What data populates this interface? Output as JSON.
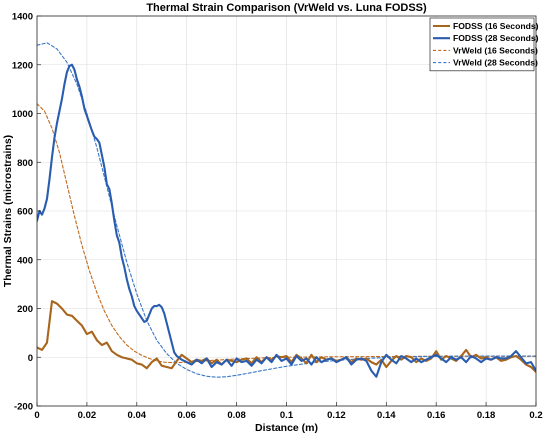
{
  "chart_data": {
    "type": "line",
    "title": "Thermal Strain Comparison (VrWeld vs. Luna FODSS)",
    "xlabel": "Distance (m)",
    "ylabel": "Thermal Strains (microstrains)",
    "xlim": [
      0,
      0.2
    ],
    "ylim": [
      -200,
      1400
    ],
    "xticks": [
      0,
      0.02,
      0.04,
      0.06,
      0.08,
      0.1,
      0.12,
      0.14,
      0.16,
      0.18,
      0.2
    ],
    "xtick_labels": [
      "0",
      "0.02",
      "0.04",
      "0.06",
      "0.08",
      "0.1",
      "0.12",
      "0.14",
      "0.16",
      "0.18",
      "0.2"
    ],
    "yticks": [
      -200,
      0,
      200,
      400,
      600,
      800,
      1000,
      1200,
      1400
    ],
    "ytick_labels": [
      "-200",
      "0",
      "200",
      "400",
      "600",
      "800",
      "1000",
      "1200",
      "1400"
    ],
    "grid": true,
    "legend_position": "top-right",
    "series": [
      {
        "name": "FODSS (16 Seconds)",
        "color": "#a8651c",
        "style": "solid",
        "points": [
          [
            0,
            40
          ],
          [
            0.002,
            30
          ],
          [
            0.004,
            60
          ],
          [
            0.006,
            230
          ],
          [
            0.008,
            220
          ],
          [
            0.01,
            200
          ],
          [
            0.012,
            175
          ],
          [
            0.014,
            170
          ],
          [
            0.016,
            150
          ],
          [
            0.018,
            130
          ],
          [
            0.02,
            95
          ],
          [
            0.022,
            105
          ],
          [
            0.024,
            70
          ],
          [
            0.026,
            50
          ],
          [
            0.028,
            60
          ],
          [
            0.03,
            25
          ],
          [
            0.032,
            10
          ],
          [
            0.034,
            0
          ],
          [
            0.036,
            -5
          ],
          [
            0.038,
            -10
          ],
          [
            0.04,
            -25
          ],
          [
            0.042,
            -30
          ],
          [
            0.044,
            -45
          ],
          [
            0.046,
            -20
          ],
          [
            0.048,
            -5
          ],
          [
            0.05,
            -35
          ],
          [
            0.052,
            -40
          ],
          [
            0.054,
            -45
          ],
          [
            0.056,
            -15
          ],
          [
            0.058,
            10
          ],
          [
            0.06,
            -5
          ],
          [
            0.062,
            -20
          ],
          [
            0.064,
            -10
          ],
          [
            0.066,
            -15
          ],
          [
            0.068,
            -5
          ],
          [
            0.07,
            -25
          ],
          [
            0.072,
            -10
          ],
          [
            0.074,
            -30
          ],
          [
            0.076,
            -10
          ],
          [
            0.078,
            -15
          ],
          [
            0.08,
            -20
          ],
          [
            0.082,
            -10
          ],
          [
            0.084,
            -5
          ],
          [
            0.086,
            -25
          ],
          [
            0.088,
            0
          ],
          [
            0.09,
            -20
          ],
          [
            0.092,
            0
          ],
          [
            0.094,
            -10
          ],
          [
            0.096,
            5
          ],
          [
            0.098,
            0
          ],
          [
            0.1,
            5
          ],
          [
            0.102,
            -20
          ],
          [
            0.104,
            10
          ],
          [
            0.106,
            -5
          ],
          [
            0.108,
            -25
          ],
          [
            0.11,
            10
          ],
          [
            0.112,
            -20
          ],
          [
            0.114,
            0
          ],
          [
            0.116,
            -10
          ],
          [
            0.118,
            -5
          ],
          [
            0.12,
            -15
          ],
          [
            0.122,
            -10
          ],
          [
            0.124,
            0
          ],
          [
            0.126,
            -20
          ],
          [
            0.128,
            -5
          ],
          [
            0.13,
            -10
          ],
          [
            0.132,
            -5
          ],
          [
            0.134,
            -20
          ],
          [
            0.136,
            -30
          ],
          [
            0.138,
            -10
          ],
          [
            0.14,
            -40
          ],
          [
            0.142,
            -15
          ],
          [
            0.144,
            5
          ],
          [
            0.146,
            -10
          ],
          [
            0.148,
            5
          ],
          [
            0.15,
            0
          ],
          [
            0.152,
            -20
          ],
          [
            0.154,
            -5
          ],
          [
            0.156,
            -15
          ],
          [
            0.158,
            -5
          ],
          [
            0.16,
            25
          ],
          [
            0.162,
            -10
          ],
          [
            0.164,
            5
          ],
          [
            0.166,
            -5
          ],
          [
            0.168,
            -15
          ],
          [
            0.17,
            5
          ],
          [
            0.172,
            30
          ],
          [
            0.174,
            0
          ],
          [
            0.176,
            10
          ],
          [
            0.178,
            -5
          ],
          [
            0.18,
            0
          ],
          [
            0.182,
            -10
          ],
          [
            0.184,
            0
          ],
          [
            0.186,
            -15
          ],
          [
            0.188,
            -10
          ],
          [
            0.19,
            0
          ],
          [
            0.192,
            5
          ],
          [
            0.194,
            -10
          ],
          [
            0.196,
            -30
          ],
          [
            0.198,
            -40
          ],
          [
            0.2,
            -60
          ]
        ]
      },
      {
        "name": "FODSS (28 Seconds)",
        "color": "#2a5db0",
        "style": "solid",
        "points": [
          [
            0,
            560
          ],
          [
            0.001,
            600
          ],
          [
            0.002,
            585
          ],
          [
            0.003,
            610
          ],
          [
            0.004,
            650
          ],
          [
            0.005,
            730
          ],
          [
            0.006,
            820
          ],
          [
            0.007,
            900
          ],
          [
            0.008,
            960
          ],
          [
            0.009,
            1010
          ],
          [
            0.01,
            1060
          ],
          [
            0.011,
            1120
          ],
          [
            0.012,
            1170
          ],
          [
            0.013,
            1195
          ],
          [
            0.014,
            1200
          ],
          [
            0.015,
            1180
          ],
          [
            0.016,
            1140
          ],
          [
            0.017,
            1110
          ],
          [
            0.018,
            1070
          ],
          [
            0.019,
            1020
          ],
          [
            0.02,
            990
          ],
          [
            0.021,
            960
          ],
          [
            0.022,
            930
          ],
          [
            0.023,
            905
          ],
          [
            0.024,
            895
          ],
          [
            0.025,
            880
          ],
          [
            0.026,
            830
          ],
          [
            0.027,
            780
          ],
          [
            0.028,
            710
          ],
          [
            0.029,
            690
          ],
          [
            0.03,
            630
          ],
          [
            0.031,
            560
          ],
          [
            0.032,
            500
          ],
          [
            0.033,
            470
          ],
          [
            0.034,
            410
          ],
          [
            0.035,
            370
          ],
          [
            0.036,
            320
          ],
          [
            0.037,
            280
          ],
          [
            0.038,
            250
          ],
          [
            0.039,
            210
          ],
          [
            0.04,
            190
          ],
          [
            0.041,
            175
          ],
          [
            0.042,
            160
          ],
          [
            0.043,
            145
          ],
          [
            0.044,
            150
          ],
          [
            0.045,
            175
          ],
          [
            0.046,
            200
          ],
          [
            0.047,
            210
          ],
          [
            0.048,
            210
          ],
          [
            0.049,
            215
          ],
          [
            0.05,
            205
          ],
          [
            0.051,
            180
          ],
          [
            0.052,
            140
          ],
          [
            0.053,
            100
          ],
          [
            0.054,
            60
          ],
          [
            0.055,
            20
          ],
          [
            0.056,
            5
          ],
          [
            0.058,
            -10
          ],
          [
            0.06,
            -20
          ],
          [
            0.062,
            -30
          ],
          [
            0.064,
            -10
          ],
          [
            0.066,
            -25
          ],
          [
            0.068,
            -5
          ],
          [
            0.07,
            -40
          ],
          [
            0.072,
            -20
          ],
          [
            0.074,
            -30
          ],
          [
            0.076,
            -10
          ],
          [
            0.078,
            -35
          ],
          [
            0.08,
            -5
          ],
          [
            0.082,
            -20
          ],
          [
            0.084,
            -15
          ],
          [
            0.086,
            -35
          ],
          [
            0.088,
            -10
          ],
          [
            0.09,
            -25
          ],
          [
            0.092,
            0
          ],
          [
            0.094,
            -20
          ],
          [
            0.096,
            10
          ],
          [
            0.098,
            -15
          ],
          [
            0.1,
            -5
          ],
          [
            0.102,
            -30
          ],
          [
            0.104,
            5
          ],
          [
            0.106,
            -15
          ],
          [
            0.108,
            -5
          ],
          [
            0.11,
            -30
          ],
          [
            0.112,
            0
          ],
          [
            0.114,
            -20
          ],
          [
            0.116,
            -10
          ],
          [
            0.118,
            -5
          ],
          [
            0.12,
            -20
          ],
          [
            0.122,
            -10
          ],
          [
            0.124,
            0
          ],
          [
            0.126,
            -30
          ],
          [
            0.128,
            -10
          ],
          [
            0.13,
            -5
          ],
          [
            0.132,
            -15
          ],
          [
            0.134,
            -55
          ],
          [
            0.136,
            -80
          ],
          [
            0.138,
            -20
          ],
          [
            0.14,
            10
          ],
          [
            0.142,
            -10
          ],
          [
            0.144,
            -25
          ],
          [
            0.146,
            5
          ],
          [
            0.148,
            -5
          ],
          [
            0.15,
            -20
          ],
          [
            0.152,
            -5
          ],
          [
            0.154,
            -20
          ],
          [
            0.156,
            -10
          ],
          [
            0.158,
            0
          ],
          [
            0.16,
            10
          ],
          [
            0.162,
            -5
          ],
          [
            0.164,
            -20
          ],
          [
            0.166,
            0
          ],
          [
            0.168,
            -10
          ],
          [
            0.17,
            0
          ],
          [
            0.172,
            -20
          ],
          [
            0.174,
            5
          ],
          [
            0.176,
            -5
          ],
          [
            0.178,
            -20
          ],
          [
            0.18,
            -5
          ],
          [
            0.182,
            -10
          ],
          [
            0.184,
            0
          ],
          [
            0.186,
            -5
          ],
          [
            0.188,
            -5
          ],
          [
            0.19,
            5
          ],
          [
            0.192,
            25
          ],
          [
            0.194,
            0
          ],
          [
            0.196,
            -25
          ],
          [
            0.198,
            -20
          ],
          [
            0.2,
            -55
          ]
        ]
      },
      {
        "name": "VrWeld (16 Seconds)",
        "color": "#c06a1e",
        "style": "dashed",
        "points": [
          [
            0,
            1040
          ],
          [
            0.003,
            1010
          ],
          [
            0.006,
            940
          ],
          [
            0.009,
            840
          ],
          [
            0.012,
            710
          ],
          [
            0.015,
            580
          ],
          [
            0.018,
            460
          ],
          [
            0.021,
            355
          ],
          [
            0.024,
            265
          ],
          [
            0.027,
            190
          ],
          [
            0.03,
            130
          ],
          [
            0.033,
            85
          ],
          [
            0.036,
            50
          ],
          [
            0.039,
            25
          ],
          [
            0.042,
            8
          ],
          [
            0.045,
            -5
          ],
          [
            0.048,
            -15
          ],
          [
            0.051,
            -20
          ],
          [
            0.054,
            -22
          ],
          [
            0.057,
            -22
          ],
          [
            0.06,
            -20
          ],
          [
            0.065,
            -17
          ],
          [
            0.07,
            -13
          ],
          [
            0.08,
            -7
          ],
          [
            0.09,
            -3
          ],
          [
            0.1,
            0
          ],
          [
            0.12,
            2
          ],
          [
            0.14,
            3
          ],
          [
            0.16,
            4
          ],
          [
            0.18,
            4
          ],
          [
            0.2,
            4
          ]
        ]
      },
      {
        "name": "VrWeld (28 Seconds)",
        "color": "#3a78c8",
        "style": "dashed",
        "points": [
          [
            0,
            1280
          ],
          [
            0.004,
            1290
          ],
          [
            0.008,
            1265
          ],
          [
            0.012,
            1210
          ],
          [
            0.016,
            1120
          ],
          [
            0.02,
            1000
          ],
          [
            0.024,
            860
          ],
          [
            0.028,
            700
          ],
          [
            0.032,
            540
          ],
          [
            0.036,
            390
          ],
          [
            0.04,
            260
          ],
          [
            0.044,
            150
          ],
          [
            0.048,
            70
          ],
          [
            0.052,
            15
          ],
          [
            0.056,
            -25
          ],
          [
            0.06,
            -50
          ],
          [
            0.064,
            -68
          ],
          [
            0.068,
            -78
          ],
          [
            0.072,
            -82
          ],
          [
            0.076,
            -80
          ],
          [
            0.08,
            -74
          ],
          [
            0.085,
            -65
          ],
          [
            0.09,
            -55
          ],
          [
            0.095,
            -46
          ],
          [
            0.1,
            -37
          ],
          [
            0.11,
            -23
          ],
          [
            0.12,
            -13
          ],
          [
            0.13,
            -6
          ],
          [
            0.14,
            -1
          ],
          [
            0.15,
            2
          ],
          [
            0.16,
            4
          ],
          [
            0.18,
            5
          ],
          [
            0.2,
            5
          ]
        ]
      }
    ]
  }
}
